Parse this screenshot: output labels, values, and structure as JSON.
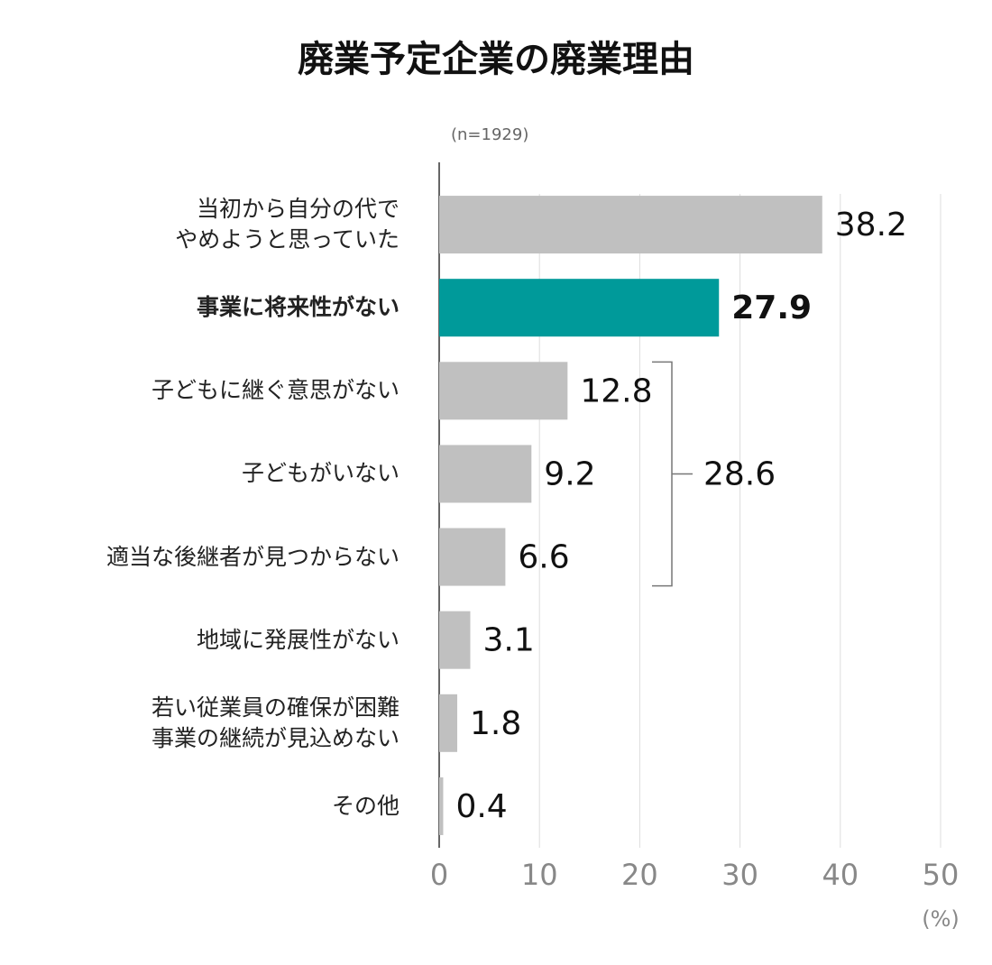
{
  "chart_data": {
    "type": "hbar",
    "title": "廃業予定企業の廃業理由",
    "subtitle": "(n=1929)",
    "xlabel": "(%)",
    "categories": [
      "当初から自分の代で\nやめようと思っていた",
      "事業に将来性がない",
      "子どもに継ぐ意思がない",
      "子どもがいない",
      "適当な後継者が見つからない",
      "地域に発展性がない",
      "若い従業員の確保が困難\n事業の継続が見込めない",
      "その他"
    ],
    "values": [
      38.2,
      27.9,
      12.8,
      9.2,
      6.6,
      3.1,
      1.8,
      0.4
    ],
    "color": "#c0c0c0",
    "highlight": 1,
    "highlight_color": "#009a9a",
    "bracket": {
      "value": 28.6,
      "from": 2,
      "to": 4
    },
    "xlim": [
      0,
      50
    ],
    "xticks": [
      0,
      10,
      20,
      30,
      40,
      50
    ],
    "grid": true
  }
}
